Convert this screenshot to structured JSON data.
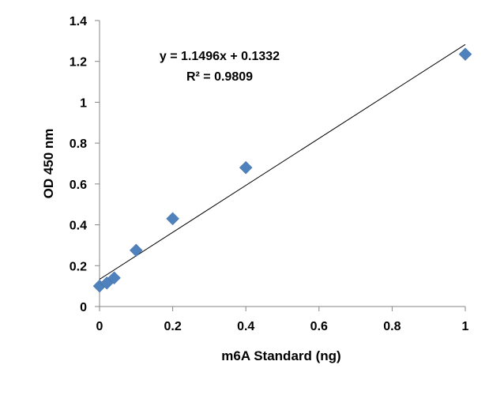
{
  "chart_data": {
    "type": "scatter",
    "xlabel": "m6A Standard (ng)",
    "ylabel": "OD 450 nm",
    "xlim": [
      0,
      1
    ],
    "ylim": [
      0,
      1.4
    ],
    "x_ticks": [
      "0",
      "0.2",
      "0.4",
      "0.6",
      "0.8",
      "1"
    ],
    "x_tick_values": [
      0,
      0.2,
      0.4,
      0.6,
      0.8,
      1
    ],
    "y_ticks": [
      "0",
      "0.2",
      "0.4",
      "0.6",
      "0.8",
      "1",
      "1.2",
      "1.4"
    ],
    "y_tick_values": [
      0,
      0.2,
      0.4,
      0.6,
      0.8,
      1,
      1.2,
      1.4
    ],
    "grid": false,
    "points": [
      {
        "x": 0,
        "y": 0.1
      },
      {
        "x": 0.02,
        "y": 0.115
      },
      {
        "x": 0.04,
        "y": 0.14
      },
      {
        "x": 0.1,
        "y": 0.275
      },
      {
        "x": 0.2,
        "y": 0.43
      },
      {
        "x": 0.4,
        "y": 0.68
      },
      {
        "x": 1,
        "y": 1.235
      }
    ],
    "marker_color": "#4F81BD",
    "trendline": {
      "slope": 1.1496,
      "intercept": 0.1332,
      "x_range": [
        0,
        1
      ],
      "color": "#000000"
    },
    "annotations": {
      "equation": "y = 1.1496x + 0.1332",
      "r_squared": "R² = 0.9809"
    }
  }
}
